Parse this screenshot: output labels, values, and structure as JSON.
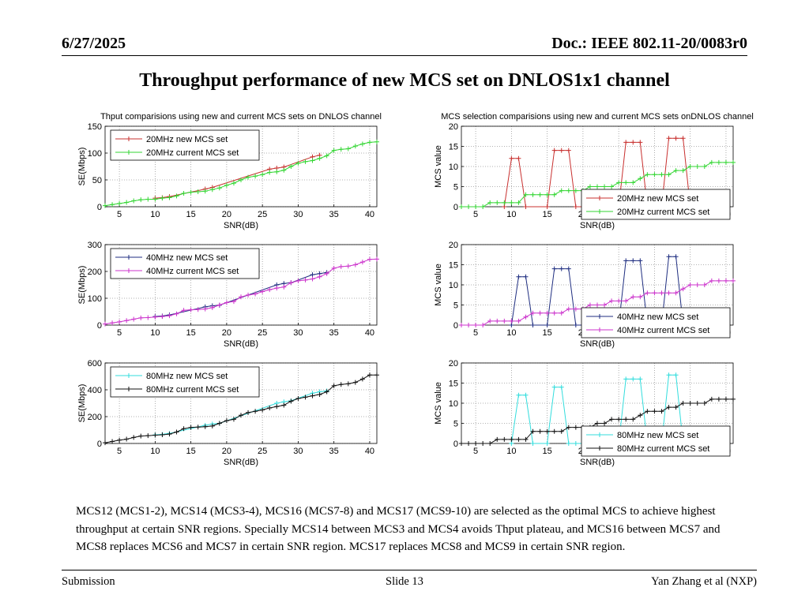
{
  "header": {
    "date": "6/27/2025",
    "doc": "Doc.: IEEE 802.11-20/0083r0"
  },
  "title": "Throughput performance of new MCS set on DNLOS1x1 channel",
  "body_text": "MCS12 (MCS1-2), MCS14 (MCS3-4), MCS16 (MCS7-8) and MCS17 (MCS9-10) are selected as the optimal MCS to achieve highest throughput at certain SNR regions. Specially MCS14 between MCS3 and MCS4 avoids Thput plateau, and MCS16 between MCS7 and MCS8 replaces MCS6 and MCS7 in certain SNR region. MCS17 replaces MCS8 and MCS9 in certain SNR region.",
  "footer": {
    "left": "Submission",
    "center": "Slide 13",
    "right": "Yan Zhang et al (NXP)"
  },
  "colors": {
    "c20new": "#c8302f",
    "c20cur": "#33d633",
    "c40new": "#1f2e80",
    "c40cur": "#cc33cc",
    "c80new": "#33dddd",
    "c80cur": "#111111"
  },
  "chart_data": [
    {
      "type": "line",
      "title": "Thput comparisions using new and current MCS sets on DNLOS channel",
      "xlabel": "SNR(dB)",
      "ylabel": "SE(Mbps)",
      "xlim": [
        3,
        41
      ],
      "ylim": [
        0,
        150
      ],
      "xticks": [
        5,
        10,
        15,
        20,
        25,
        30,
        35,
        40
      ],
      "yticks": [
        0,
        50,
        100,
        150
      ],
      "legend_position": "top-left",
      "series": [
        {
          "name": "20MHz new MCS set",
          "color": "#c8302f",
          "x": [
            10,
            11,
            12,
            17,
            18,
            26,
            27,
            28,
            32,
            33
          ],
          "values": [
            16,
            17,
            19,
            33,
            36,
            70,
            72,
            74,
            93,
            96
          ]
        },
        {
          "name": "20MHz current MCS set",
          "color": "#33d633",
          "x": [
            3,
            4,
            5,
            6,
            7,
            8,
            9,
            10,
            11,
            12,
            13,
            14,
            15,
            16,
            17,
            18,
            19,
            20,
            21,
            22,
            23,
            24,
            25,
            26,
            27,
            28,
            29,
            30,
            31,
            32,
            33,
            34,
            35,
            36,
            37,
            38,
            39,
            40,
            41
          ],
          "values": [
            2,
            4,
            6,
            8,
            11,
            13,
            14,
            14,
            16,
            17,
            20,
            25,
            27,
            28,
            29,
            32,
            35,
            40,
            44,
            50,
            55,
            57,
            60,
            64,
            65,
            68,
            75,
            81,
            84,
            86,
            90,
            95,
            105,
            107,
            108,
            113,
            117,
            120,
            121
          ]
        }
      ]
    },
    {
      "type": "line",
      "title": "MCS selection comparisions using new and current MCS sets onDNLOS channel",
      "xlabel": "SNR(dB)",
      "ylabel": "MCS value",
      "xlim": [
        3,
        41
      ],
      "ylim": [
        0,
        20
      ],
      "xticks": [
        5,
        10,
        15,
        20,
        25,
        30,
        35,
        40
      ],
      "yticks": [
        0,
        5,
        10,
        15,
        20
      ],
      "legend_position": "bottom-right",
      "series": [
        {
          "name": "20MHz new MCS set",
          "color": "#c8302f",
          "x": [
            9,
            10,
            11,
            12,
            15,
            16,
            17,
            18,
            19,
            25,
            26,
            27,
            28,
            29,
            31,
            32,
            33,
            34,
            35
          ],
          "values": [
            0,
            12,
            12,
            0,
            0,
            14,
            14,
            14,
            0,
            0,
            16,
            16,
            16,
            0,
            0,
            17,
            17,
            17,
            0
          ]
        },
        {
          "name": "20MHz current MCS set",
          "color": "#33d633",
          "x": [
            3,
            4,
            5,
            6,
            7,
            8,
            9,
            10,
            11,
            12,
            13,
            14,
            15,
            16,
            17,
            18,
            19,
            20,
            21,
            22,
            23,
            24,
            25,
            26,
            27,
            28,
            29,
            30,
            31,
            32,
            33,
            34,
            35,
            36,
            37,
            38,
            39,
            40,
            41
          ],
          "values": [
            0,
            0,
            0,
            0,
            1,
            1,
            1,
            1,
            1,
            3,
            3,
            3,
            3,
            3,
            4,
            4,
            4,
            4,
            5,
            5,
            5,
            5,
            6,
            6,
            6,
            7,
            8,
            8,
            8,
            8,
            9,
            9,
            10,
            10,
            10,
            11,
            11,
            11,
            11
          ]
        }
      ]
    },
    {
      "type": "line",
      "title": "",
      "xlabel": "SNR(dB)",
      "ylabel": "SE(Mbps)",
      "xlim": [
        3,
        41
      ],
      "ylim": [
        0,
        300
      ],
      "xticks": [
        5,
        10,
        15,
        20,
        25,
        30,
        35,
        40
      ],
      "yticks": [
        0,
        100,
        200,
        300
      ],
      "legend_position": "top-left",
      "series": [
        {
          "name": "40MHz new MCS set",
          "color": "#1f2e80",
          "x": [
            10,
            11,
            12,
            17,
            18,
            19,
            27,
            28,
            29,
            32,
            33,
            34
          ],
          "values": [
            32,
            34,
            38,
            68,
            72,
            74,
            150,
            155,
            158,
            188,
            192,
            196
          ]
        },
        {
          "name": "40MHz current MCS set",
          "color": "#cc33cc",
          "x": [
            3,
            4,
            5,
            6,
            7,
            8,
            9,
            10,
            11,
            12,
            13,
            14,
            15,
            16,
            17,
            18,
            19,
            20,
            21,
            22,
            23,
            24,
            25,
            26,
            27,
            28,
            29,
            30,
            31,
            32,
            33,
            34,
            35,
            36,
            37,
            38,
            39,
            40,
            41
          ],
          "values": [
            4,
            8,
            12,
            17,
            22,
            27,
            28,
            30,
            32,
            35,
            42,
            55,
            57,
            58,
            60,
            65,
            75,
            84,
            88,
            105,
            112,
            116,
            125,
            132,
            138,
            142,
            158,
            165,
            168,
            172,
            180,
            192,
            212,
            218,
            220,
            225,
            235,
            245,
            246
          ]
        }
      ]
    },
    {
      "type": "line",
      "title": "",
      "xlabel": "SNR(dB)",
      "ylabel": "MCS value",
      "xlim": [
        3,
        41
      ],
      "ylim": [
        0,
        20
      ],
      "xticks": [
        5,
        10,
        15,
        20,
        25,
        30,
        35,
        40
      ],
      "yticks": [
        0,
        5,
        10,
        15,
        20
      ],
      "legend_position": "bottom-right",
      "series": [
        {
          "name": "40MHz new MCS set",
          "color": "#1f2e80",
          "x": [
            10,
            11,
            12,
            13,
            15,
            16,
            17,
            18,
            19,
            25,
            26,
            27,
            28,
            29,
            31,
            32,
            33,
            34
          ],
          "values": [
            0,
            12,
            12,
            0,
            0,
            14,
            14,
            14,
            0,
            0,
            16,
            16,
            16,
            0,
            0,
            17,
            17,
            0
          ]
        },
        {
          "name": "40MHz current MCS set",
          "color": "#cc33cc",
          "x": [
            3,
            4,
            5,
            6,
            7,
            8,
            9,
            10,
            11,
            12,
            13,
            14,
            15,
            16,
            17,
            18,
            19,
            20,
            21,
            22,
            23,
            24,
            25,
            26,
            27,
            28,
            29,
            30,
            31,
            32,
            33,
            34,
            35,
            36,
            37,
            38,
            39,
            40,
            41
          ],
          "values": [
            0,
            0,
            0,
            0,
            1,
            1,
            1,
            1,
            1,
            2,
            3,
            3,
            3,
            3,
            3,
            4,
            4,
            4,
            5,
            5,
            5,
            6,
            6,
            6,
            7,
            7,
            8,
            8,
            8,
            8,
            8,
            9,
            10,
            10,
            10,
            11,
            11,
            11,
            11
          ]
        }
      ]
    },
    {
      "type": "line",
      "title": "",
      "xlabel": "SNR(dB)",
      "ylabel": "SE(Mbps)",
      "xlim": [
        3,
        41
      ],
      "ylim": [
        0,
        600
      ],
      "xticks": [
        5,
        10,
        15,
        20,
        25,
        30,
        35,
        40
      ],
      "yticks": [
        0,
        200,
        400,
        600
      ],
      "legend_position": "top-left",
      "series": [
        {
          "name": "80MHz new MCS set",
          "color": "#33dddd",
          "x": [
            10,
            11,
            12,
            17,
            18,
            19,
            27,
            28,
            29,
            32,
            33,
            34
          ],
          "values": [
            64,
            68,
            75,
            135,
            145,
            150,
            300,
            310,
            318,
            375,
            385,
            392
          ]
        },
        {
          "name": "80MHz current MCS set",
          "color": "#111111",
          "x": [
            3,
            4,
            5,
            6,
            7,
            8,
            9,
            10,
            11,
            12,
            13,
            14,
            15,
            16,
            17,
            18,
            19,
            20,
            21,
            22,
            23,
            24,
            25,
            26,
            27,
            28,
            29,
            30,
            31,
            32,
            33,
            34,
            35,
            36,
            37,
            38,
            39,
            40,
            41
          ],
          "values": [
            5,
            15,
            25,
            32,
            45,
            55,
            58,
            62,
            65,
            70,
            85,
            110,
            120,
            122,
            125,
            130,
            150,
            170,
            180,
            210,
            230,
            240,
            250,
            265,
            275,
            285,
            315,
            335,
            345,
            355,
            365,
            385,
            430,
            440,
            445,
            455,
            480,
            510,
            510
          ]
        }
      ]
    },
    {
      "type": "line",
      "title": "",
      "xlabel": "SNR(dB)",
      "ylabel": "MCS value",
      "xlim": [
        3,
        41
      ],
      "ylim": [
        0,
        20
      ],
      "xticks": [
        5,
        10,
        15,
        20,
        25,
        30,
        35,
        40
      ],
      "yticks": [
        0,
        5,
        10,
        15,
        20
      ],
      "legend_position": "bottom-right",
      "series": [
        {
          "name": "80MHz new MCS set",
          "color": "#33dddd",
          "x": [
            10,
            11,
            12,
            13,
            15,
            16,
            17,
            18,
            19,
            25,
            26,
            27,
            28,
            29,
            31,
            32,
            33,
            34
          ],
          "values": [
            0,
            12,
            12,
            0,
            0,
            14,
            14,
            0,
            0,
            0,
            16,
            16,
            16,
            0,
            0,
            17,
            17,
            0
          ]
        },
        {
          "name": "80MHz current MCS set",
          "color": "#111111",
          "x": [
            3,
            4,
            5,
            6,
            7,
            8,
            9,
            10,
            11,
            12,
            13,
            14,
            15,
            16,
            17,
            18,
            19,
            20,
            21,
            22,
            23,
            24,
            25,
            26,
            27,
            28,
            29,
            30,
            31,
            32,
            33,
            34,
            35,
            36,
            37,
            38,
            39,
            40,
            41
          ],
          "values": [
            0,
            0,
            0,
            0,
            0,
            1,
            1,
            1,
            1,
            1,
            3,
            3,
            3,
            3,
            3,
            4,
            4,
            4,
            4,
            5,
            5,
            6,
            6,
            6,
            6,
            7,
            8,
            8,
            8,
            9,
            9,
            10,
            10,
            10,
            10,
            11,
            11,
            11,
            11
          ]
        }
      ]
    }
  ]
}
